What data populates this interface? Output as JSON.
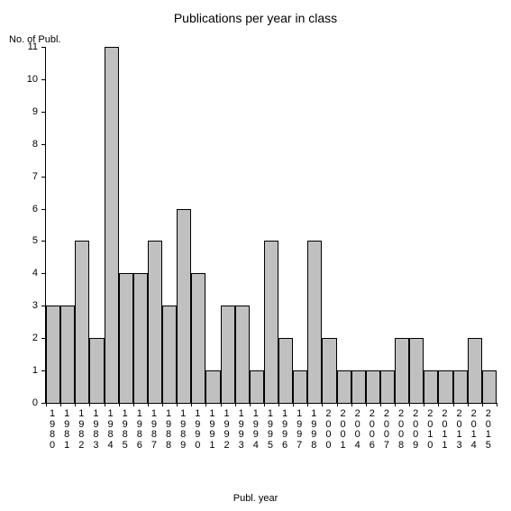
{
  "chart": {
    "type": "bar",
    "title": "Publications per year in class",
    "title_fontsize": 14,
    "y_axis_label": "No. of Publ.",
    "x_axis_label": "Publ. year",
    "label_fontsize": 11,
    "background_color": "#ffffff",
    "bar_fill_color": "#c0c0c0",
    "bar_border_color": "#000000",
    "axis_color": "#000000",
    "text_color": "#000000",
    "ylim": [
      0,
      11
    ],
    "ytick_step": 1,
    "yticks": [
      0,
      1,
      2,
      3,
      4,
      5,
      6,
      7,
      8,
      9,
      10,
      11
    ],
    "bar_width": 1.0,
    "categories": [
      "1980",
      "1981",
      "1982",
      "1983",
      "1984",
      "1985",
      "1986",
      "1987",
      "1988",
      "1989",
      "1990",
      "1991",
      "1992",
      "1993",
      "1994",
      "1995",
      "1996",
      "1997",
      "1998",
      "2000",
      "2001",
      "2004",
      "2006",
      "2007",
      "2008",
      "2009",
      "2010",
      "2011",
      "2013",
      "2014",
      "2015"
    ],
    "values": [
      3,
      3,
      5,
      2,
      11,
      4,
      4,
      5,
      3,
      6,
      4,
      1,
      3,
      3,
      1,
      5,
      2,
      1,
      5,
      2,
      1,
      1,
      1,
      1,
      2,
      2,
      1,
      1,
      1,
      2,
      1
    ]
  }
}
